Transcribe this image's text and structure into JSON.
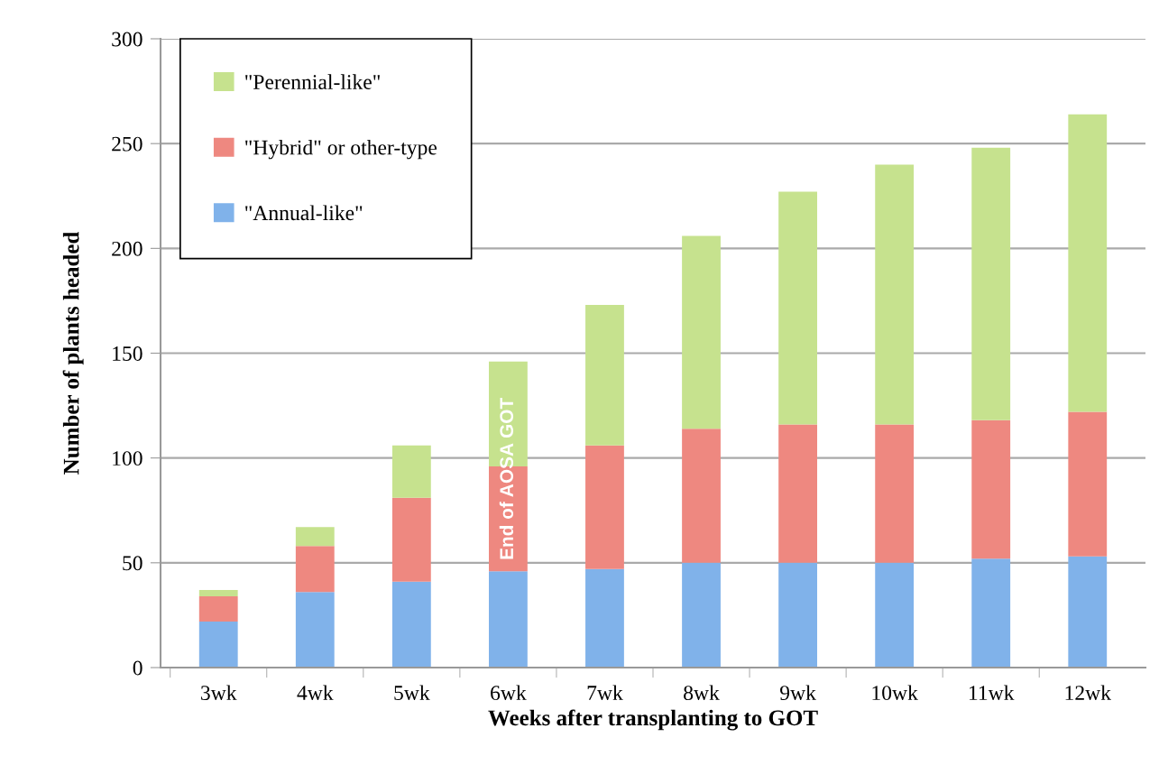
{
  "chart_data": {
    "type": "bar",
    "stacked": true,
    "xlabel": "Weeks after transplanting to GOT",
    "ylabel": "Number of plants headed",
    "categories": [
      "3wk",
      "4wk",
      "5wk",
      "6wk",
      "7wk",
      "8wk",
      "9wk",
      "10wk",
      "11wk",
      "12wk"
    ],
    "series": [
      {
        "name": "\"Annual-like\"",
        "color": "#80b2ea",
        "values": [
          22,
          36,
          41,
          46,
          47,
          50,
          50,
          50,
          52,
          53
        ]
      },
      {
        "name": "\"Hybrid\" or other-type",
        "color": "#ee8880",
        "values": [
          12,
          22,
          40,
          50,
          59,
          64,
          66,
          66,
          66,
          69
        ]
      },
      {
        "name": "\"Perennial-like\"",
        "color": "#c6e28e",
        "values": [
          3,
          9,
          25,
          50,
          67,
          92,
          111,
          124,
          130,
          142
        ]
      }
    ],
    "ylim": [
      0,
      300
    ],
    "yticks": [
      0,
      50,
      100,
      150,
      200,
      250,
      300
    ],
    "grid": "y",
    "legend": "top left",
    "annotations": [
      "End of AOSA GOT"
    ]
  }
}
